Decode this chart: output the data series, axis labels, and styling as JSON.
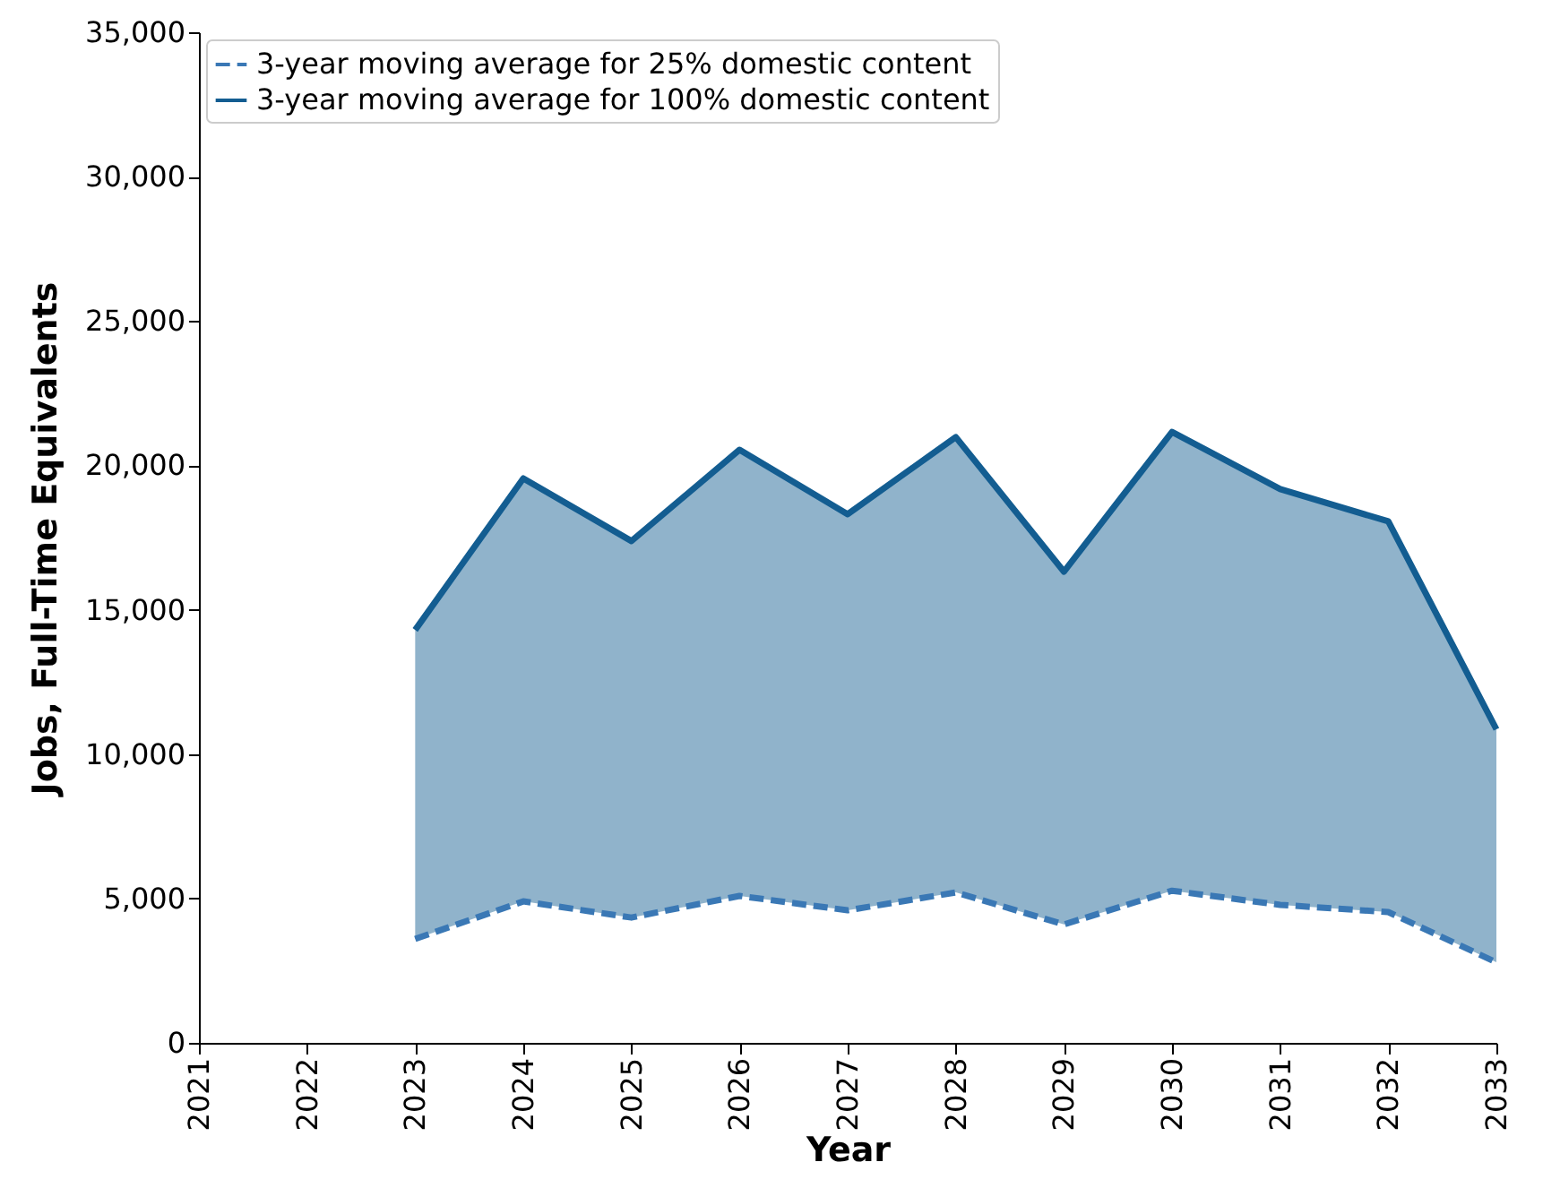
{
  "chart_data": {
    "type": "line",
    "xlabel": "Year",
    "ylabel": "Jobs, Full-Time Equivalents",
    "x": [
      2023,
      2024,
      2025,
      2026,
      2027,
      2028,
      2029,
      2030,
      2031,
      2032,
      2033
    ],
    "series": [
      {
        "name": "3-year moving average for 25% domestic content",
        "color": "#3a78b5",
        "line_style": "dashed",
        "values": [
          3600,
          4900,
          4340,
          5090,
          4590,
          5210,
          4100,
          5270,
          4780,
          4530,
          2790
        ]
      },
      {
        "name": "3-year moving average for 100% domestic content",
        "color": "#135d91",
        "line_style": "solid",
        "values": [
          14300,
          19550,
          17380,
          20540,
          18310,
          20980,
          16320,
          21160,
          19180,
          18060,
          10860
        ],
        "lower": [
          3600,
          4900,
          4340,
          5090,
          4590,
          5210,
          4100,
          5270,
          4780,
          4530,
          2790
        ],
        "upper": [
          14300,
          19550,
          17380,
          20540,
          18310,
          20980,
          16320,
          21160,
          19180,
          18060,
          10860
        ]
      }
    ],
    "xlim": [
      2021,
      2033
    ],
    "xticks": [
      2021,
      2022,
      2023,
      2024,
      2025,
      2026,
      2027,
      2028,
      2029,
      2030,
      2031,
      2032,
      2033
    ],
    "ylim": [
      0,
      35000
    ],
    "yticks": [
      0,
      {
        "value": 5000,
        "label": "5,000"
      },
      {
        "value": 10000,
        "label": "10,000"
      },
      {
        "value": 15000,
        "label": "15,000"
      },
      {
        "value": 20000,
        "label": "20,000"
      },
      {
        "value": 25000,
        "label": "25,000"
      },
      {
        "value": 30000,
        "label": "30,000"
      },
      {
        "value": 35000,
        "label": "35,000"
      }
    ],
    "grid": false,
    "legend": "top left",
    "marker": "none"
  }
}
